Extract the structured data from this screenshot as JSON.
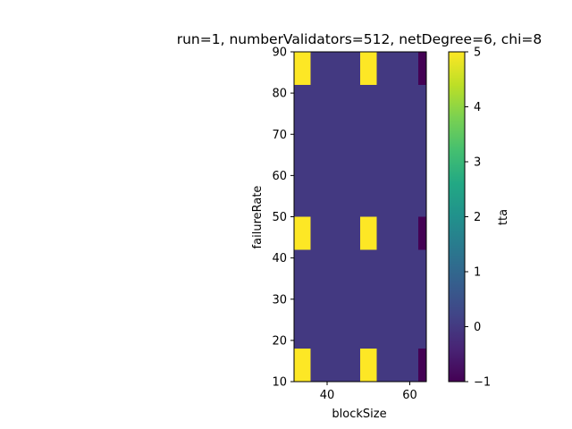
{
  "chart_data": {
    "type": "heatmap",
    "title": "run=1, numberValidators=512, netDegree=6, chi=8",
    "xlabel": "blockSize",
    "ylabel": "failureRate",
    "colorbar_label": "tta",
    "colormap": "viridis",
    "x_categories": [
      32,
      48,
      64
    ],
    "x_bins": [
      [
        32,
        36
      ],
      [
        36,
        48
      ],
      [
        48,
        52
      ],
      [
        52,
        62
      ],
      [
        62,
        64
      ]
    ],
    "y_bins": [
      [
        10,
        18
      ],
      [
        18,
        42
      ],
      [
        42,
        50
      ],
      [
        50,
        82
      ],
      [
        82,
        90
      ]
    ],
    "z": [
      [
        5,
        0,
        5,
        0,
        -1
      ],
      [
        0,
        0,
        0,
        0,
        0
      ],
      [
        5,
        0,
        5,
        0,
        -1
      ],
      [
        0,
        0,
        0,
        0,
        0
      ],
      [
        5,
        0,
        5,
        0,
        -1
      ]
    ],
    "xlim": [
      32,
      64
    ],
    "ylim": [
      10,
      90
    ],
    "clim": [
      -1,
      5
    ],
    "x_ticks": [
      40,
      60
    ],
    "y_ticks": [
      10,
      20,
      30,
      40,
      50,
      60,
      70,
      80,
      90
    ],
    "colorbar_ticks": [
      -1,
      0,
      1,
      2,
      3,
      4,
      5
    ],
    "grid": false
  }
}
